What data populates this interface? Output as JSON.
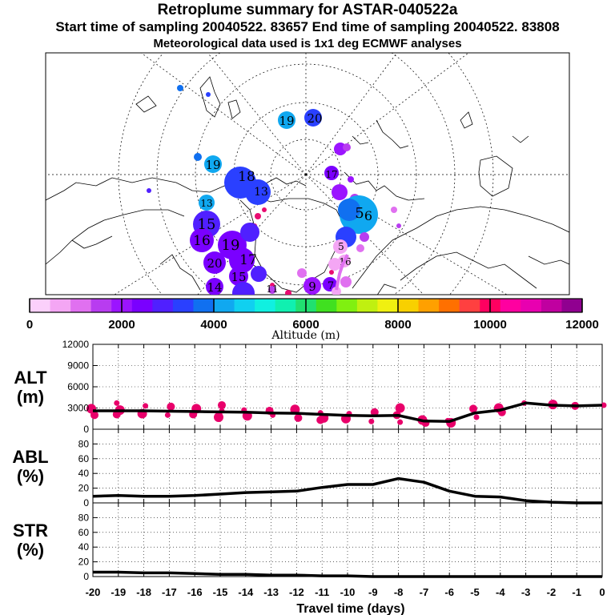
{
  "header": {
    "title": "Retroplume summary for ASTAR-040522a",
    "sampling": "Start time of sampling 20040522. 83657      End time of sampling 20040522. 83808",
    "met": "Meteorological data used is 1x1 deg ECMWF analyses"
  },
  "colors": {
    "plume": "#e8006a",
    "line": "#000000",
    "colorbar": [
      "#fbd0fb",
      "#f4a6f4",
      "#e070f0",
      "#b83cf0",
      "#9b14ff",
      "#7a00ff",
      "#5020ff",
      "#2a40ff",
      "#1070f0",
      "#10a8f0",
      "#10d0f0",
      "#10f0e0",
      "#10f0b0",
      "#20e070",
      "#40e020",
      "#80f010",
      "#c0f010",
      "#f0f010",
      "#f8d000",
      "#ffa000",
      "#ff7000",
      "#ff4040",
      "#ff0060",
      "#ff00a0",
      "#e800b0",
      "#c000a0",
      "#900090"
    ]
  },
  "map_labels": [
    {
      "id": "m1",
      "text": "19"
    },
    {
      "id": "m2",
      "text": "20"
    },
    {
      "id": "m3",
      "text": "19"
    },
    {
      "id": "m4",
      "text": "18"
    },
    {
      "id": "m5",
      "text": "17"
    },
    {
      "id": "m6",
      "text": "13"
    },
    {
      "id": "m7",
      "text": "15"
    },
    {
      "id": "m8",
      "text": "16"
    },
    {
      "id": "m9",
      "text": "19"
    },
    {
      "id": "m10",
      "text": "20"
    },
    {
      "id": "m11",
      "text": "15"
    },
    {
      "id": "m12",
      "text": "14"
    },
    {
      "id": "m13",
      "text": "17"
    },
    {
      "id": "m14",
      "text": "5"
    },
    {
      "id": "m15",
      "text": "6"
    },
    {
      "id": "m16",
      "text": "9"
    },
    {
      "id": "m17",
      "text": "7"
    },
    {
      "id": "m18",
      "text": "11"
    },
    {
      "id": "m19",
      "text": "5"
    },
    {
      "id": "m20",
      "text": "16"
    },
    {
      "id": "m21",
      "text": "13"
    }
  ],
  "chart_data": [
    {
      "type": "colorbar",
      "xlabel": "Altitude (m)",
      "range": [
        0,
        12000
      ],
      "ticks": [
        0,
        2000,
        4000,
        6000,
        8000,
        10000,
        12000
      ],
      "tick_labels": [
        "0",
        "2000",
        "4000",
        "6000",
        "8000",
        "10000",
        "12000"
      ]
    },
    {
      "type": "line",
      "ylabel": "ALT\n(m)",
      "ylim": [
        0,
        12000
      ],
      "yticks": [
        0,
        3000,
        6000,
        9000,
        12000
      ],
      "ytick_labels": [
        "0",
        "3000",
        "6000",
        "9000",
        "12000"
      ],
      "x": [
        -20,
        -19,
        -18,
        -17,
        -16,
        -15,
        -14,
        -13,
        -12,
        -11,
        -10,
        -9,
        -8,
        -7,
        -6,
        -5,
        -4,
        -3,
        -2,
        -1,
        0
      ],
      "values": [
        2600,
        2600,
        2600,
        2550,
        2500,
        2450,
        2400,
        2300,
        2250,
        2100,
        1950,
        1900,
        1950,
        1150,
        1100,
        2300,
        2700,
        3700,
        3400,
        3300,
        3400
      ],
      "scatter": [
        [
          -20,
          2900
        ],
        [
          -20,
          2000
        ],
        [
          -19,
          3700
        ],
        [
          -19,
          2700
        ],
        [
          -19,
          2100
        ],
        [
          -18,
          3300
        ],
        [
          -18,
          2200
        ],
        [
          -17,
          3200
        ],
        [
          -17,
          2000
        ],
        [
          -16,
          2900
        ],
        [
          -16,
          2100
        ],
        [
          -15,
          2600
        ],
        [
          -15,
          1700
        ],
        [
          -15,
          3400
        ],
        [
          -14,
          2700
        ],
        [
          -14,
          1900
        ],
        [
          -13,
          2600
        ],
        [
          -13,
          2000
        ],
        [
          -12,
          2800
        ],
        [
          -12,
          1600
        ],
        [
          -11,
          2300
        ],
        [
          -11,
          1600
        ],
        [
          -11,
          1300
        ],
        [
          -10,
          2200
        ],
        [
          -10,
          1500
        ],
        [
          -9,
          2400
        ],
        [
          -9,
          1100
        ],
        [
          -8,
          3000
        ],
        [
          -8,
          2000
        ],
        [
          -8,
          1000
        ],
        [
          -7,
          1300
        ],
        [
          -7,
          900
        ],
        [
          -6,
          1200
        ],
        [
          -6,
          900
        ],
        [
          -5,
          2900
        ],
        [
          -5,
          1700
        ],
        [
          -4,
          3000
        ],
        [
          -4,
          2400
        ],
        [
          -3,
          3700
        ],
        [
          -2,
          3500
        ],
        [
          -1,
          3300
        ],
        [
          0,
          3400
        ]
      ]
    },
    {
      "type": "line",
      "ylabel": "ABL\n(%)",
      "ylim": [
        0,
        100
      ],
      "yticks": [
        0,
        20,
        40,
        60,
        80
      ],
      "ytick_labels": [
        "0",
        "20",
        "40",
        "60",
        "80"
      ],
      "x": [
        -20,
        -19,
        -18,
        -17,
        -16,
        -15,
        -14,
        -13,
        -12,
        -11,
        -10,
        -9,
        -8,
        -7,
        -6,
        -5,
        -4,
        -3,
        -2,
        -1,
        0
      ],
      "values": [
        9,
        10,
        9,
        9,
        10,
        12,
        14,
        15,
        16,
        21,
        25,
        25,
        33,
        28,
        16,
        9,
        8,
        3,
        1,
        0,
        0
      ]
    },
    {
      "type": "line",
      "ylabel": "STR\n(%)",
      "ylim": [
        0,
        100
      ],
      "yticks": [
        0,
        20,
        40,
        60,
        80
      ],
      "ytick_labels": [
        "0",
        "20",
        "40",
        "60",
        "80"
      ],
      "xlabel": "Travel time (days)",
      "xtick_labels": [
        "-20",
        "-19",
        "-18",
        "-17",
        "-16",
        "-15",
        "-14",
        "-13",
        "-12",
        "-11",
        "-10",
        "-9",
        "-8",
        "-7",
        "-6",
        "-5",
        "-4",
        "-3",
        "-2",
        "-1",
        "0"
      ],
      "x": [
        -20,
        -19,
        -18,
        -17,
        -16,
        -15,
        -14,
        -13,
        -12,
        -11,
        -10,
        -9,
        -8,
        -7,
        -6,
        -5,
        -4,
        -3,
        -2,
        -1,
        0
      ],
      "values": [
        6,
        6,
        5,
        5,
        4,
        3,
        3,
        2,
        2,
        1,
        1,
        0,
        0,
        0,
        0,
        0,
        0,
        0,
        0,
        0,
        0
      ]
    }
  ]
}
